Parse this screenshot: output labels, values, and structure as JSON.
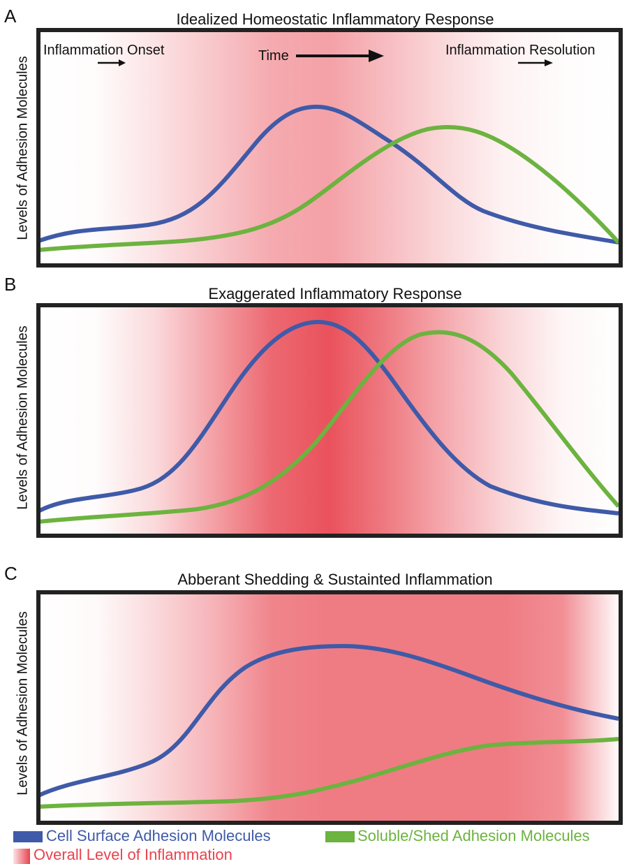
{
  "colors": {
    "cell_surface": "#3f5aa8",
    "soluble": "#6cb33f",
    "inflammation": "#e8434e",
    "frame": "#222222"
  },
  "panels": [
    {
      "letter": "A",
      "title": "Idealized Homeostatic Inflammatory Response",
      "ylabel": "Levels of Adhesion Molecules",
      "annotations": {
        "onset": "Inflammation Onset",
        "time": "Time",
        "resolution": "Inflammation Resolution"
      },
      "inflammation_level": [
        0.0,
        0.02,
        0.15,
        0.3,
        0.45,
        0.5,
        0.35,
        0.2,
        0.07,
        0.02,
        0.0
      ]
    },
    {
      "letter": "B",
      "title": "Exaggerated Inflammatory Response",
      "ylabel": "Levels of Adhesion Molecules",
      "inflammation_level": [
        0.0,
        0.02,
        0.2,
        0.5,
        0.8,
        0.92,
        0.7,
        0.45,
        0.22,
        0.05,
        0.0
      ]
    },
    {
      "letter": "C",
      "title": "Abberant Shedding & Sustainted Inflammation",
      "ylabel": "Levels of Adhesion Molecules",
      "inflammation_level": [
        0.0,
        0.03,
        0.2,
        0.4,
        0.65,
        0.7,
        0.7,
        0.7,
        0.7,
        0.6,
        0.0
      ]
    }
  ],
  "legend": {
    "cell_surface": "Cell Surface Adhesion Molecules",
    "soluble": "Soluble/Shed Adhesion Molecules",
    "inflammation": "Overall Level of Inflammation"
  }
}
